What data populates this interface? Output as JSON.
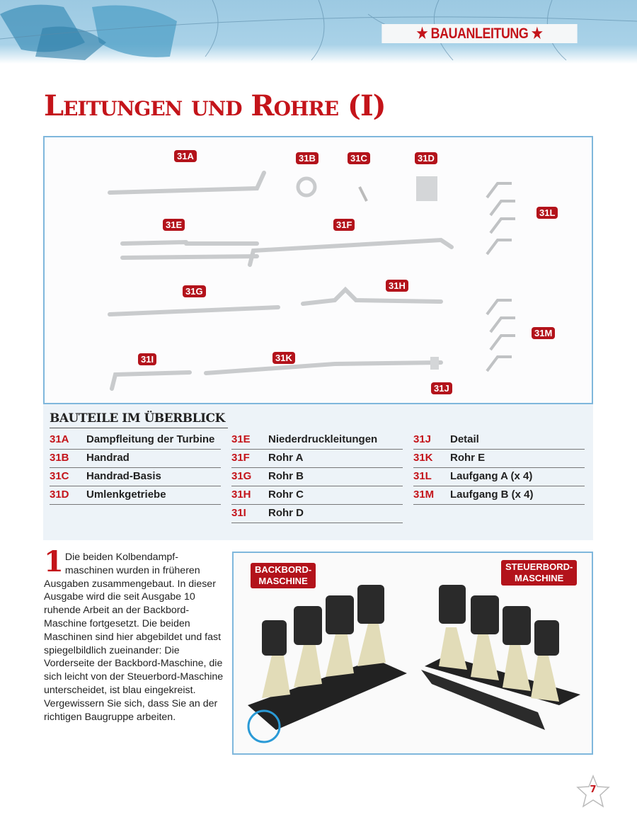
{
  "header": {
    "section_tag": "★ BAUANLEITUNG ★"
  },
  "title": "Leitungen und Rohre (I)",
  "parts_labels": [
    "31A",
    "31B",
    "31C",
    "31D",
    "31E",
    "31F",
    "31G",
    "31H",
    "31I",
    "31J",
    "31K",
    "31L",
    "31M"
  ],
  "overview": {
    "title": "BAUTEILE IM ÜBERBLICK",
    "columns": [
      [
        {
          "id": "31A",
          "name": "Dampfleitung der Turbine"
        },
        {
          "id": "31B",
          "name": "Handrad"
        },
        {
          "id": "31C",
          "name": "Handrad-Basis"
        },
        {
          "id": "31D",
          "name": "Umlenkgetriebe"
        }
      ],
      [
        {
          "id": "31E",
          "name": "Niederdruckleitungen"
        },
        {
          "id": "31F",
          "name": "Rohr A"
        },
        {
          "id": "31G",
          "name": "Rohr B"
        },
        {
          "id": "31H",
          "name": "Rohr C"
        },
        {
          "id": "31I",
          "name": "Rohr D"
        }
      ],
      [
        {
          "id": "31J",
          "name": "Detail"
        },
        {
          "id": "31K",
          "name": "Rohr E"
        },
        {
          "id": "31L",
          "name": "Laufgang A (x 4)"
        },
        {
          "id": "31M",
          "name": "Laufgang B (x 4)"
        }
      ]
    ]
  },
  "step": {
    "number": "1",
    "text": "Die beiden Kolbendampf-maschinen wurden in früheren Ausgaben zusammengebaut. In dieser Ausgabe wird die seit Ausgabe 10 ruhende Arbeit an der Backbord-Maschine fortgesetzt. Die beiden Maschinen sind hier abgebildet und fast spiegelbildlich zueinander: Die Vorderseite der Backbord-Maschine, die sich leicht von der Steuerbord-Maschine unterscheidet, ist blau eingekreist. Vergewissern Sie sich, dass Sie an der richtigen Baugruppe arbeiten."
  },
  "photo": {
    "left_label": "BACKBORD-\nMASCHINE",
    "right_label": "STEUERBORD-\nMASCHINE"
  },
  "page_number": "7",
  "colors": {
    "accent": "#c4141a",
    "frame": "#7fb7dc",
    "highlight_circle": "#2a9ad6"
  }
}
